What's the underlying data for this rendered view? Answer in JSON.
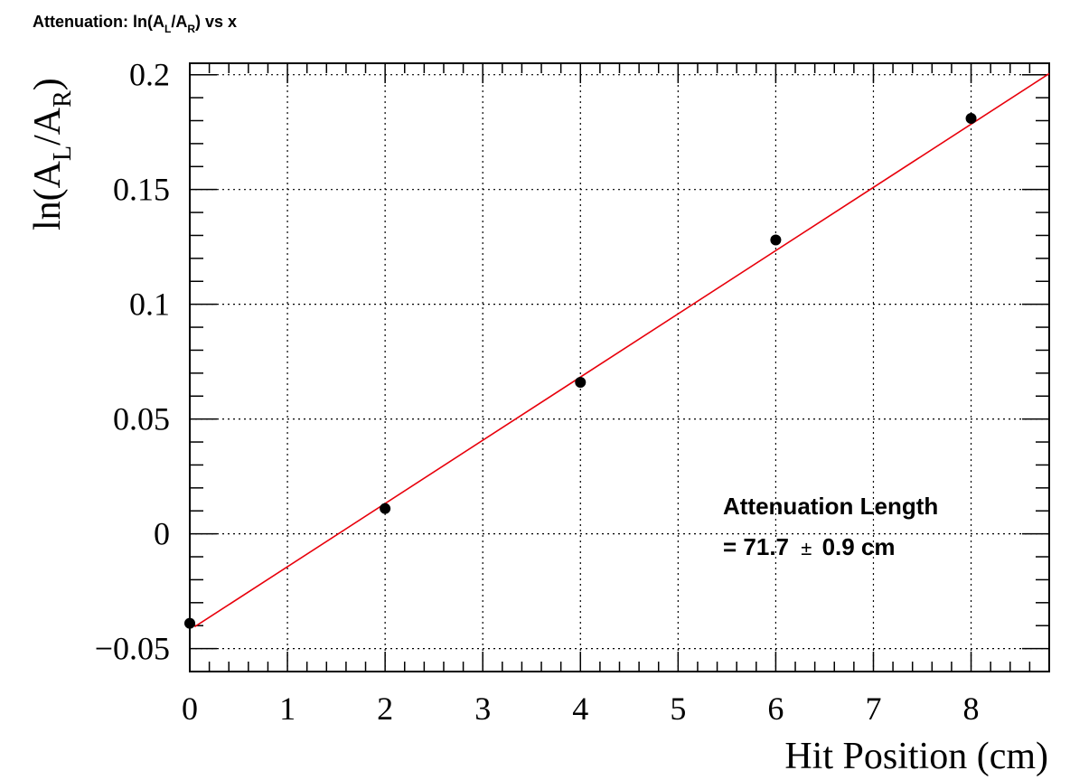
{
  "chart_data": {
    "type": "scatter",
    "title_parts": {
      "prefix": "Attenuation: ln(A",
      "sub1": "L",
      "mid": "/A",
      "sub2": "R",
      "suffix": ") vs x"
    },
    "xlabel": "Hit Position (cm)",
    "ylabel_parts": {
      "prefix": "ln(A",
      "sub1": "L",
      "mid": "/A",
      "sub2": "R",
      "suffix": ")"
    },
    "xlim": [
      0,
      8.8
    ],
    "ylim": [
      -0.06,
      0.205
    ],
    "x_ticks": [
      0,
      1,
      2,
      3,
      4,
      5,
      6,
      7,
      8
    ],
    "x_tick_labels": [
      "0",
      "1",
      "2",
      "3",
      "4",
      "5",
      "6",
      "7",
      "8"
    ],
    "y_ticks": [
      -0.05,
      0,
      0.05,
      0.1,
      0.15,
      0.2
    ],
    "y_tick_labels": [
      "−0.05",
      "0",
      "0.05",
      "0.1",
      "0.15",
      "0.2"
    ],
    "grid": true,
    "series": [
      {
        "points": [
          {
            "x": 0,
            "y": -0.039
          },
          {
            "x": 2,
            "y": 0.011
          },
          {
            "x": 4,
            "y": 0.066
          },
          {
            "x": 6,
            "y": 0.128
          },
          {
            "x": 8,
            "y": 0.181
          }
        ],
        "color": "#000000"
      }
    ],
    "fit_line": {
      "color": "#e8000b",
      "x0": 0.05,
      "y0": -0.0405,
      "x1": 8.8,
      "y1": 0.2005
    },
    "annotation": {
      "line1": "Attenuation Length",
      "line2_prefix": "= 71.7",
      "line2_pm": "±",
      "line2_suffix": "0.9 cm"
    }
  }
}
